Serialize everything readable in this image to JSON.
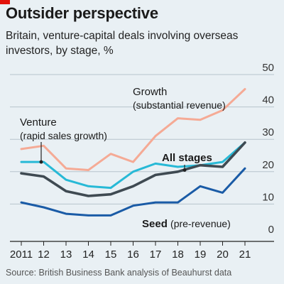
{
  "header": {
    "title": "Outsider perspective",
    "subtitle": "Britain, venture-capital deals involving overseas investors, by stage, %"
  },
  "footer": {
    "source": "Source: British Business Bank analysis of Beauhurst data"
  },
  "colors": {
    "background": "#e9f0f4",
    "brand_tag": "#e3120b",
    "growth": "#f5aa95",
    "venture": "#27b9d6",
    "all_stages": "#3f4a52",
    "seed": "#1a5ba6",
    "gridline": "#b7c4cc"
  },
  "chart_data": {
    "type": "line",
    "x": [
      "2011",
      "12",
      "13",
      "14",
      "15",
      "16",
      "17",
      "18",
      "19",
      "20",
      "21"
    ],
    "ylim": [
      0,
      50
    ],
    "yticks": [
      0,
      10,
      20,
      30,
      40,
      50
    ],
    "grid": true,
    "axis_side": "right",
    "series": [
      {
        "key": "growth",
        "label_main": "Growth",
        "label_sub": "(substantial revenue)",
        "values": [
          27,
          28,
          21,
          20.5,
          25.5,
          23,
          31,
          36.5,
          36,
          39,
          45.5
        ]
      },
      {
        "key": "venture",
        "label_main": "Venture",
        "label_sub": "(rapid sales growth)",
        "values": [
          23,
          23,
          17.5,
          15.5,
          15,
          20,
          22.5,
          21.5,
          22,
          23,
          29
        ]
      },
      {
        "key": "all_stages",
        "label_main": "All stages",
        "label_sub": "",
        "values": [
          19.5,
          18.5,
          14,
          12.5,
          13,
          15.5,
          19,
          20,
          22,
          21.5,
          29
        ]
      },
      {
        "key": "seed",
        "label_main": "Seed",
        "label_sub": "(pre-revenue)",
        "values": [
          10.5,
          9,
          7,
          6.5,
          6.5,
          9.5,
          10.5,
          10.5,
          15.5,
          13.5,
          21
        ]
      }
    ]
  }
}
